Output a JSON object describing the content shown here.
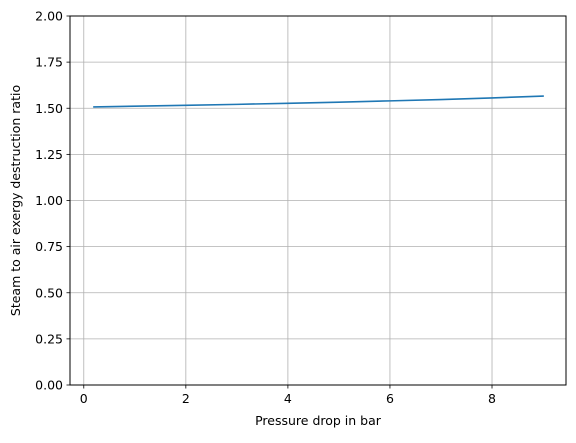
{
  "chart_data": {
    "type": "line",
    "title": "",
    "xlabel": "Pressure drop in bar",
    "ylabel": "Steam to air exergy destruction ratio",
    "xlim": [
      -0.27,
      9.45
    ],
    "ylim": [
      0,
      2
    ],
    "xticks": [
      0,
      2,
      4,
      6,
      8
    ],
    "xtick_labels": [
      "0",
      "2",
      "4",
      "6",
      "8"
    ],
    "yticks": [
      0,
      0.25,
      0.5,
      0.75,
      1.0,
      1.25,
      1.5,
      1.75,
      2.0
    ],
    "ytick_labels": [
      "0.00",
      "0.25",
      "0.50",
      "0.75",
      "1.00",
      "1.25",
      "1.50",
      "1.75",
      "2.00"
    ],
    "grid": true,
    "series": [
      {
        "color": "#1f77b4",
        "x": [
          0.2,
          1,
          2,
          3,
          4,
          5,
          6,
          7,
          8,
          9
        ],
        "y": [
          1.507,
          1.511,
          1.516,
          1.521,
          1.527,
          1.533,
          1.54,
          1.547,
          1.556,
          1.566
        ]
      }
    ]
  },
  "colors": {
    "grid": "#b0b0b0",
    "axis": "#000000",
    "background": "#ffffff"
  }
}
